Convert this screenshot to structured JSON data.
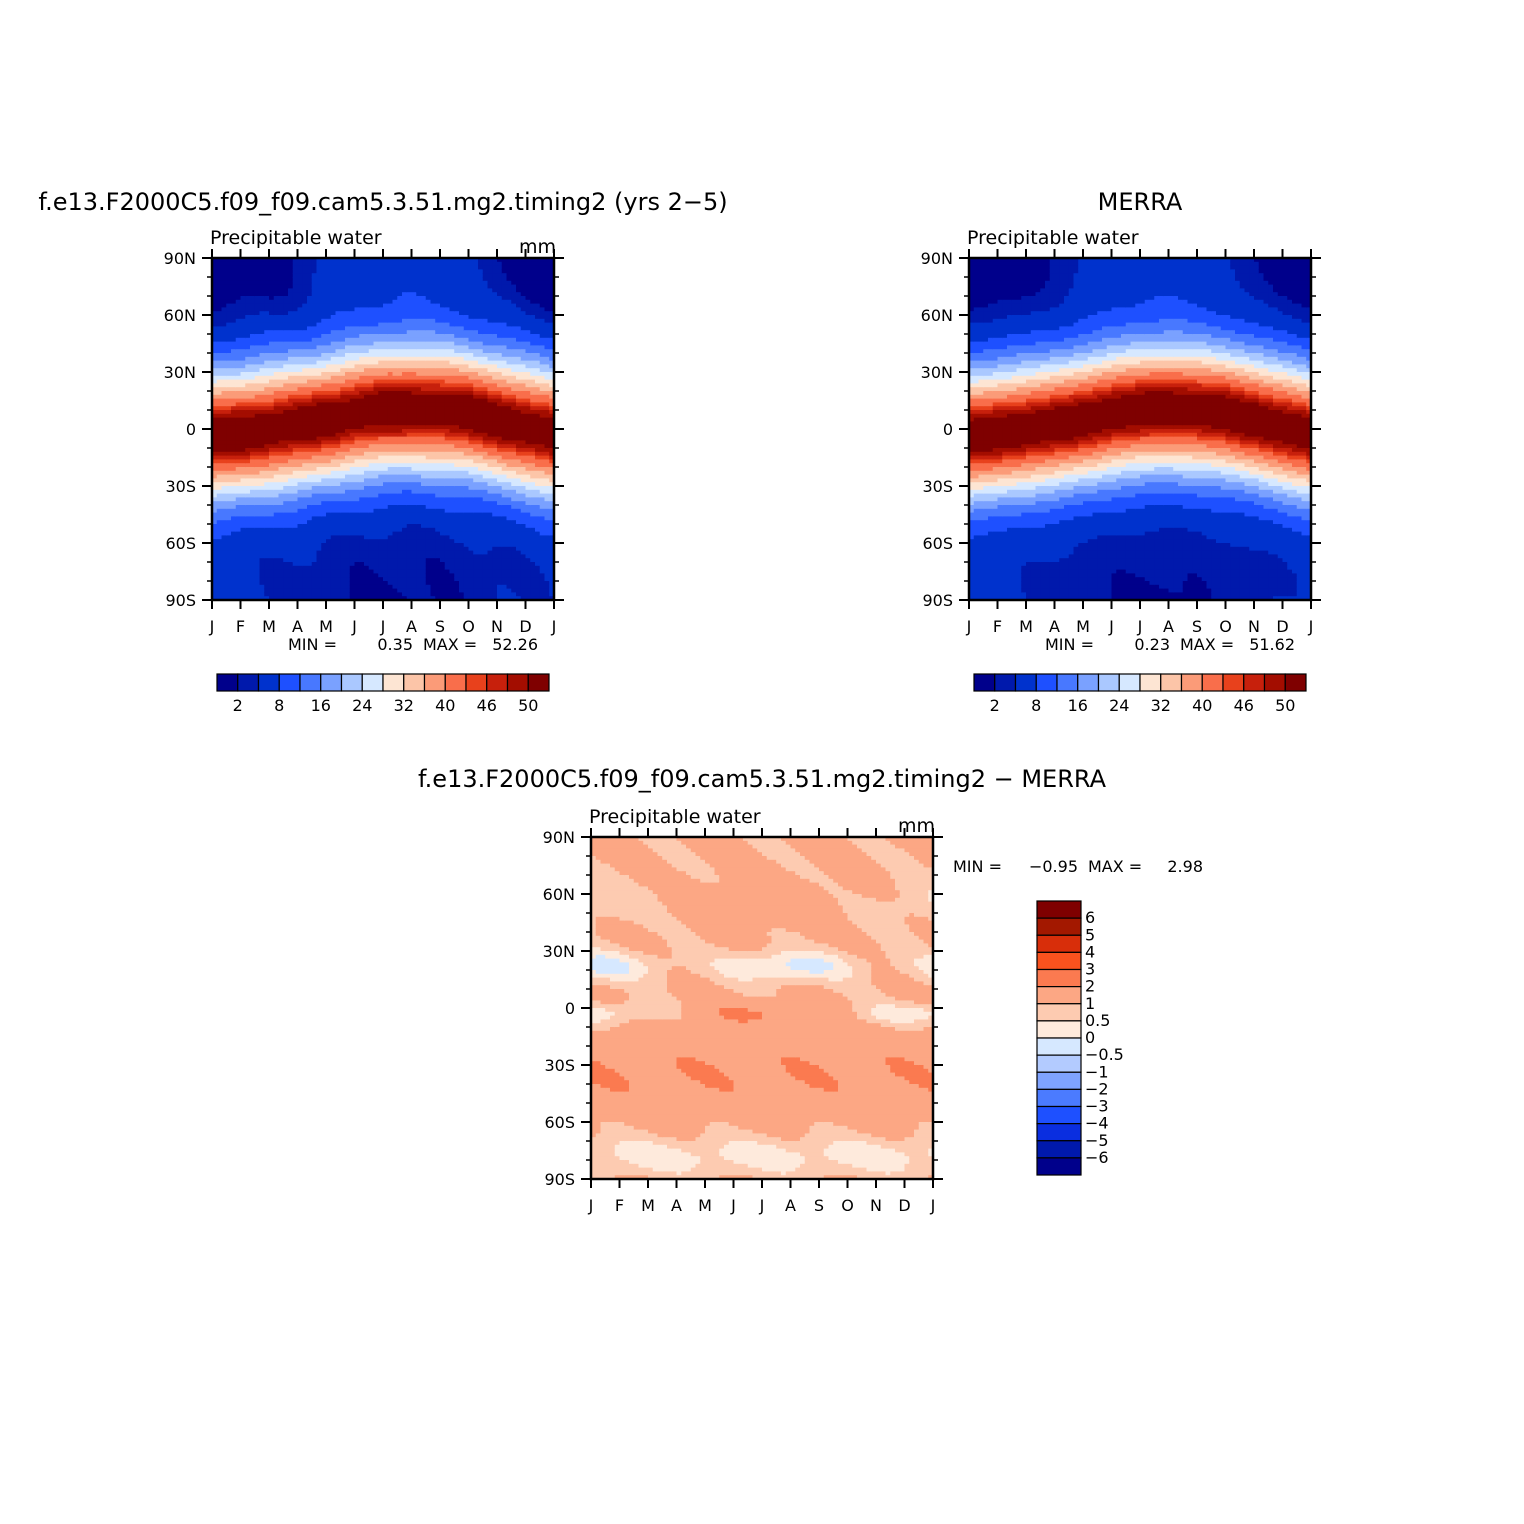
{
  "chart_data": [
    {
      "type": "heatmap",
      "title": "f.e13.F2000C5.f09_f09.cam5.3.51.mg2.timing2 (yrs 2−5)",
      "subtitle": "Precipitable water",
      "units": "mm",
      "x_ticks": [
        "J",
        "F",
        "M",
        "A",
        "M",
        "J",
        "J",
        "A",
        "S",
        "O",
        "N",
        "D",
        "J"
      ],
      "y_ticks": [
        "90N",
        "60N",
        "30N",
        "0",
        "30S",
        "60S",
        "90S"
      ],
      "y_range": [
        -90,
        90
      ],
      "min_label": "MIN =",
      "min_value": "0.35",
      "max_label": "MAX =",
      "max_value": "52.26",
      "pattern": "equatorial maximum migrating north in boreal summer",
      "peak_lat": [
        -4,
        -2,
        0,
        2,
        5,
        8,
        10,
        11,
        10,
        8,
        5,
        1,
        -3
      ],
      "levels": [
        0,
        2,
        4,
        8,
        12,
        16,
        20,
        24,
        28,
        32,
        36,
        40,
        44,
        46,
        48,
        50
      ],
      "colorbar_labels": [
        "2",
        "8",
        "16",
        "24",
        "32",
        "40",
        "46",
        "50"
      ],
      "colors": [
        "#00008b",
        "#0019ac",
        "#0032cd",
        "#1e50ff",
        "#4878ff",
        "#7aa1ff",
        "#aac8ff",
        "#d6e8ff",
        "#fde5d3",
        "#fcc5a8",
        "#fb9b78",
        "#f96e4b",
        "#e8411c",
        "#c7200c",
        "#a30d00",
        "#7f0000"
      ]
    },
    {
      "type": "heatmap",
      "title": "MERRA",
      "subtitle": "Precipitable water",
      "x_ticks": [
        "J",
        "F",
        "M",
        "A",
        "M",
        "J",
        "J",
        "A",
        "S",
        "O",
        "N",
        "D",
        "J"
      ],
      "y_ticks": [
        "90N",
        "60N",
        "30N",
        "0",
        "30S",
        "60S",
        "90S"
      ],
      "y_range": [
        -90,
        90
      ],
      "min_label": "MIN =",
      "min_value": "0.23",
      "max_label": "MAX =",
      "max_value": "51.62",
      "pattern": "equatorial maximum migrating north in boreal summer",
      "peak_lat": [
        -4,
        -2,
        0,
        2,
        5,
        8,
        10,
        11,
        10,
        8,
        5,
        1,
        -3
      ],
      "levels": [
        0,
        2,
        4,
        8,
        12,
        16,
        20,
        24,
        28,
        32,
        36,
        40,
        44,
        46,
        48,
        50
      ],
      "colorbar_labels": [
        "2",
        "8",
        "16",
        "24",
        "32",
        "40",
        "46",
        "50"
      ],
      "colors": [
        "#00008b",
        "#0019ac",
        "#0032cd",
        "#1e50ff",
        "#4878ff",
        "#7aa1ff",
        "#aac8ff",
        "#d6e8ff",
        "#fde5d3",
        "#fcc5a8",
        "#fb9b78",
        "#f96e4b",
        "#e8411c",
        "#c7200c",
        "#a30d00",
        "#7f0000"
      ]
    },
    {
      "type": "heatmap",
      "title": "f.e13.F2000C5.f09_f09.cam5.3.51.mg2.timing2 − MERRA",
      "subtitle": "Precipitable water",
      "units": "mm",
      "x_ticks": [
        "J",
        "F",
        "M",
        "A",
        "M",
        "J",
        "J",
        "A",
        "S",
        "O",
        "N",
        "D",
        "J"
      ],
      "y_ticks": [
        "90N",
        "60N",
        "30N",
        "0",
        "30S",
        "60S",
        "90S"
      ],
      "y_range": [
        -90,
        90
      ],
      "min_label": "MIN =",
      "min_value": "−0.95",
      "max_label": "MAX =",
      "max_value": "2.98",
      "colorbar_labels": [
        "6",
        "5",
        "4",
        "3",
        "2",
        "1",
        "0.5",
        "0",
        "−0.5",
        "−1",
        "−2",
        "−3",
        "−4",
        "−5",
        "−6"
      ],
      "colors": [
        "#7f0000",
        "#a31800",
        "#d82e0a",
        "#f9521e",
        "#fb7a50",
        "#fca784",
        "#fdcbb1",
        "#feeadc",
        "#d6e8ff",
        "#b3cbff",
        "#7fa3ff",
        "#4b7bff",
        "#1e50ff",
        "#0a2ee0",
        "#0019ac",
        "#00008b"
      ]
    }
  ]
}
